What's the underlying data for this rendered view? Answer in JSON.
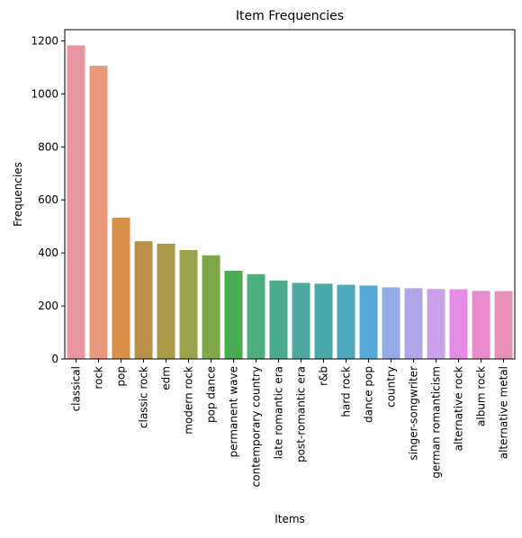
{
  "chart_data": {
    "type": "bar",
    "title": "Item Frequencies",
    "xlabel": "Items",
    "ylabel": "Frequencies",
    "ylim": [
      0,
      1200
    ],
    "yticks": [
      0,
      200,
      400,
      600,
      800,
      1000,
      1200
    ],
    "grid": false,
    "categories": [
      "classical",
      "rock",
      "pop",
      "classic rock",
      "edm",
      "modern rock",
      "pop dance",
      "permanent wave",
      "contemporary country",
      "late romantic era",
      "post-romantic era",
      "r&b",
      "hard rock",
      "dance pop",
      "country",
      "singer-songwriter",
      "german romanticism",
      "alternative rock",
      "album rock",
      "alternative metal"
    ],
    "values": [
      1183,
      1106,
      533,
      444,
      435,
      411,
      391,
      333,
      320,
      296,
      287,
      284,
      280,
      277,
      270,
      267,
      264,
      263,
      257,
      256
    ],
    "colors": [
      "#ea96a2",
      "#e8997c",
      "#d9914a",
      "#b98f4a",
      "#aa9a48",
      "#9aa34a",
      "#7ea747",
      "#46ae4f",
      "#4daf80",
      "#4aaa8c",
      "#4ca89e",
      "#4ba8a8",
      "#4ba9bb",
      "#54a9d9",
      "#93ace8",
      "#b1a6e8",
      "#cba0ea",
      "#e68be5",
      "#e88bcf",
      "#e891b7"
    ]
  }
}
